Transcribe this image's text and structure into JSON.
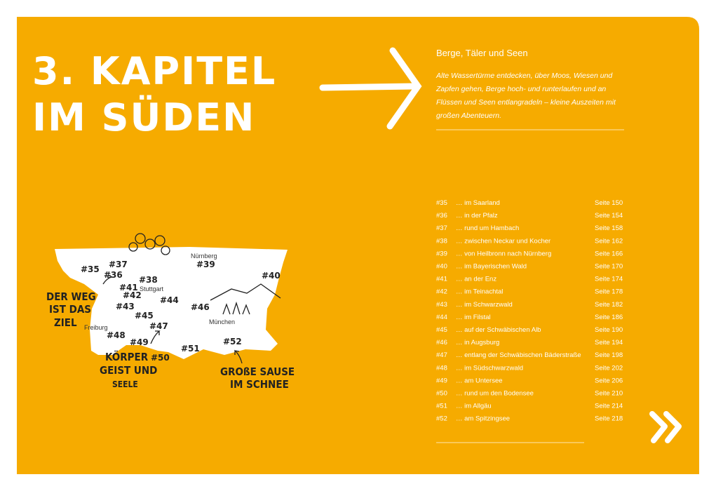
{
  "title": {
    "line1": "3. KAPITEL",
    "line2": "IM SÜDEN"
  },
  "intro": {
    "heading": "Berge, Täler und Seen",
    "text": "Alte Wassertürme entdecken, über Moos, Wiesen und Zapfen gehen, Berge hoch- und runterlaufen und an Flüssen und Seen entlangradeln – kleine Auszeiten mit großen Abenteuern."
  },
  "toc": {
    "rows": [
      [
        "#35",
        "… im Saarland",
        "Seite 150"
      ],
      [
        "#36",
        "… in der Pfalz",
        "Seite 154"
      ],
      [
        "#37",
        "… rund um Hambach",
        "Seite 158"
      ],
      [
        "#38",
        "… zwischen Neckar und Kocher",
        "Seite 162"
      ],
      [
        "#39",
        "… von Heilbronn nach Nürnberg",
        "Seite 166"
      ],
      [
        "#40",
        "… im Bayerischen Wald",
        "Seite 170"
      ],
      [
        "#41",
        "… an der Enz",
        "Seite 174"
      ],
      [
        "#42",
        "… im Teinachtal",
        "Seite 178"
      ],
      [
        "#43",
        "… im Schwarzwald",
        "Seite 182"
      ],
      [
        "#44",
        "… im Filstal",
        "Seite 186"
      ],
      [
        "#45",
        "… auf der Schwäbischen Alb",
        "Seite 190"
      ],
      [
        "#46",
        "… in Augsburg",
        "Seite 194"
      ],
      [
        "#47",
        "… entlang der Schwäbischen Bäderstraße",
        "Seite 198"
      ],
      [
        "#48",
        "… im Südschwarzwald",
        "Seite 202"
      ],
      [
        "#49",
        "… am Untersee",
        "Seite 206"
      ],
      [
        "#50",
        "… rund um den Bodensee",
        "Seite 210"
      ],
      [
        "#51",
        "… im Allgäu",
        "Seite 214"
      ],
      [
        "#52",
        "… am Spitzingsee",
        "Seite 218"
      ]
    ]
  },
  "map": {
    "markers": [
      "#35",
      "#36",
      "#37",
      "#38",
      "#39",
      "#40",
      "#41",
      "#42",
      "#43",
      "#44",
      "#45",
      "#46",
      "#47",
      "#48",
      "#49",
      "#50",
      "#51",
      "#52"
    ],
    "cities": [
      "Nürnberg",
      "Stuttgart",
      "Freiburg",
      "München"
    ],
    "slogans": [
      [
        "DER WEG",
        "IST DAS",
        "ZIEL"
      ],
      [
        "KÖRPER",
        "GEIST UND",
        "SEELE"
      ],
      [
        "GROßE SAUSE",
        "IM SCHNEE"
      ]
    ]
  }
}
